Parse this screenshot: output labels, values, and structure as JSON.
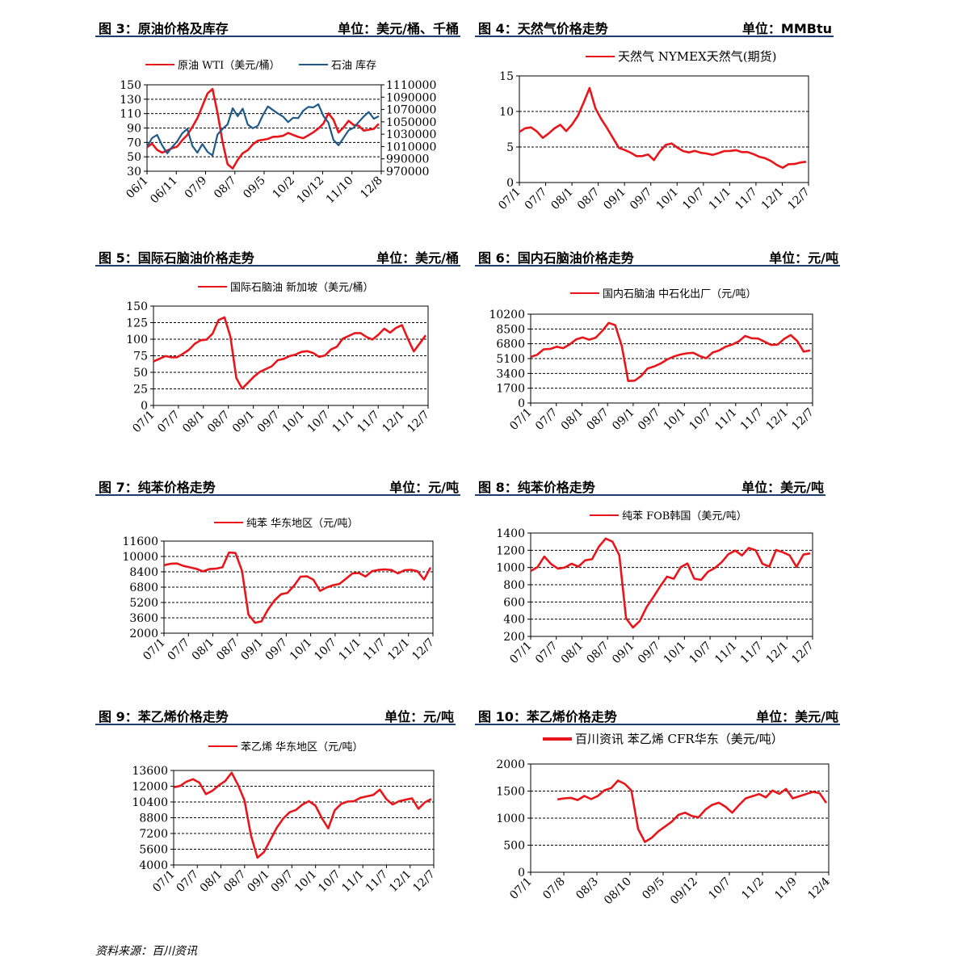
{
  "source": "资料来源：百川资讯",
  "colors": {
    "red": "#e8161b",
    "blue": "#1f5a8a",
    "header_rule": "#1f3c6e"
  },
  "figures": [
    {
      "title": "图 3：原油价格及库存",
      "unit": "单位：美元/桶、千桶"
    },
    {
      "title": "图 4：天然气价格走势",
      "unit": "单位：MMBtu"
    },
    {
      "title": "图 5：国际石脑油价格走势",
      "unit": "单位：美元/桶"
    },
    {
      "title": "图 6：国内石脑油价格走势",
      "unit": "单位：元/吨"
    },
    {
      "title": "图 7：纯苯价格走势",
      "unit": "单位：元/吨"
    },
    {
      "title": "图 8：纯苯价格走势",
      "unit": "单位：美元/吨"
    },
    {
      "title": "图 9：苯乙烯价格走势",
      "unit": "单位：元/吨"
    },
    {
      "title": "图 10：苯乙烯价格走势",
      "unit": "单位：美元/吨"
    }
  ],
  "chart_data": [
    {
      "type": "line",
      "dual_axis": true,
      "x_ticks": [
        "06/1",
        "06/11",
        "07/9",
        "08/7",
        "09/5",
        "10/2",
        "10/12",
        "11/10",
        "12/8"
      ],
      "y_ticks": [
        150,
        130,
        110,
        90,
        70,
        50,
        30
      ],
      "y_range": [
        30,
        150
      ],
      "y2_ticks": [
        1110000,
        1090000,
        1070000,
        1050000,
        1030000,
        1010000,
        990000,
        970000
      ],
      "y2_range": [
        970000,
        1110000
      ],
      "grid": "dashed",
      "legend_position": "top",
      "series": [
        {
          "name": "原油 WTI（美元/桶）",
          "axis": "left",
          "color": "#e8161b",
          "values": [
            62,
            68,
            60,
            57,
            58,
            62,
            65,
            72,
            80,
            92,
            105,
            120,
            138,
            145,
            110,
            70,
            40,
            35,
            45,
            55,
            60,
            66,
            72,
            74,
            76,
            77,
            78,
            80,
            82,
            80,
            78,
            77,
            79,
            84,
            90,
            95,
            110,
            102,
            85,
            90,
            100,
            95,
            92,
            86,
            88,
            90,
            95
          ]
        },
        {
          "name": "石油 库存",
          "axis": "right",
          "color": "#1f5a8a",
          "values": [
            1010000,
            1025000,
            1028000,
            1012000,
            1000000,
            1008000,
            1018000,
            1032000,
            1040000,
            1010000,
            1000000,
            1015000,
            1000000,
            995000,
            1030000,
            1040000,
            1045000,
            1072000,
            1060000,
            1070000,
            1045000,
            1040000,
            1045000,
            1060000,
            1075000,
            1070000,
            1062000,
            1058000,
            1050000,
            1058000,
            1055000,
            1068000,
            1075000,
            1072000,
            1078000,
            1060000,
            1050000,
            1020000,
            1012000,
            1025000,
            1035000,
            1040000,
            1050000,
            1060000,
            1065000,
            1055000,
            1060000
          ]
        }
      ]
    },
    {
      "type": "line",
      "x_ticks": [
        "07/1",
        "07/7",
        "08/1",
        "08/7",
        "09/1",
        "09/7",
        "10/1",
        "10/7",
        "11/1",
        "11/7",
        "12/1",
        "12/7"
      ],
      "y_ticks": [
        15,
        10,
        5,
        0
      ],
      "y_range": [
        0,
        15
      ],
      "grid": "dashed",
      "legend_position": "top",
      "series": [
        {
          "name": "天然气 NYMEX天然气(期货)",
          "color": "#e8161b",
          "values": [
            7.0,
            7.6,
            7.8,
            7.3,
            6.2,
            6.9,
            7.7,
            8.0,
            7.2,
            8.2,
            9.5,
            11.2,
            13.3,
            10.5,
            8.8,
            7.6,
            6.3,
            5.0,
            4.5,
            4.2,
            3.8,
            3.6,
            3.9,
            3.2,
            4.5,
            5.2,
            5.5,
            5.0,
            4.3,
            4.2,
            4.5,
            4.3,
            4.0,
            3.9,
            4.2,
            4.3,
            4.4,
            4.6,
            4.4,
            4.2,
            4.0,
            3.7,
            3.3,
            3.0,
            2.5,
            2.2,
            2.5,
            2.6,
            2.9,
            2.8
          ]
        }
      ]
    },
    {
      "type": "line",
      "x_ticks": [
        "07/1",
        "07/7",
        "08/1",
        "08/7",
        "09/1",
        "09/7",
        "10/1",
        "10/7",
        "11/1",
        "11/7",
        "12/1",
        "12/7"
      ],
      "y_ticks": [
        150,
        125,
        100,
        75,
        50,
        25,
        0
      ],
      "y_range": [
        0,
        150
      ],
      "grid": "dashed",
      "legend_position": "top",
      "series": [
        {
          "name": "国际石脑油 新加坡（美元/桶）",
          "color": "#e8161b",
          "values": [
            65,
            70,
            75,
            74,
            72,
            78,
            85,
            92,
            98,
            100,
            110,
            128,
            133,
            105,
            40,
            25,
            35,
            45,
            50,
            55,
            60,
            67,
            70,
            75,
            78,
            80,
            82,
            80,
            72,
            75,
            85,
            90,
            100,
            105,
            110,
            108,
            103,
            100,
            108,
            115,
            110,
            118,
            120,
            100,
            82,
            95,
            105
          ]
        }
      ]
    },
    {
      "type": "line",
      "x_ticks": [
        "07/1",
        "07/7",
        "08/1",
        "08/7",
        "09/1",
        "09/7",
        "10/1",
        "10/7",
        "11/1",
        "11/7",
        "12/1",
        "12/7"
      ],
      "y_ticks": [
        10200,
        8500,
        6800,
        5100,
        3400,
        1700,
        0
      ],
      "y_range": [
        0,
        10200
      ],
      "grid": "dashed",
      "legend_position": "top",
      "series": [
        {
          "name": "国内石脑油 中石化出厂（元/吨）",
          "color": "#e8161b",
          "values": [
            5200,
            5500,
            6200,
            6300,
            6400,
            6300,
            6800,
            7200,
            7500,
            7300,
            7600,
            8200,
            9200,
            9000,
            6500,
            2500,
            2600,
            3200,
            3900,
            4200,
            4600,
            4900,
            5300,
            5600,
            5800,
            5700,
            5400,
            5200,
            5700,
            6000,
            6500,
            6800,
            7000,
            7700,
            7500,
            7300,
            7000,
            6700,
            6800,
            7300,
            7800,
            7200,
            5800,
            6000
          ]
        }
      ]
    },
    {
      "type": "line",
      "x_ticks": [
        "07/1",
        "07/7",
        "08/1",
        "08/7",
        "09/1",
        "09/7",
        "10/1",
        "10/7",
        "11/1",
        "11/7",
        "12/1",
        "12/7"
      ],
      "y_ticks": [
        11600,
        10000,
        8400,
        6800,
        5200,
        3600,
        2000
      ],
      "y_range": [
        2000,
        11600
      ],
      "grid": "dashed",
      "legend_position": "top",
      "series": [
        {
          "name": "纯苯 华东地区（元/吨）",
          "color": "#e8161b",
          "values": [
            9000,
            9200,
            9300,
            9100,
            8800,
            8700,
            8500,
            8600,
            8700,
            8900,
            10500,
            10300,
            8500,
            4000,
            3000,
            3200,
            4500,
            5500,
            6000,
            6200,
            7000,
            7800,
            7900,
            7600,
            6500,
            6700,
            7000,
            7200,
            7600,
            8200,
            8300,
            8000,
            8400,
            8600,
            8700,
            8500,
            8200,
            8600,
            8700,
            8400,
            7600,
            8900
          ]
        }
      ]
    },
    {
      "type": "line",
      "x_ticks": [
        "07/1",
        "07/7",
        "08/1",
        "08/7",
        "09/1",
        "09/7",
        "10/1",
        "10/7",
        "11/1",
        "11/7",
        "12/1",
        "12/7"
      ],
      "y_ticks": [
        1400,
        1200,
        1000,
        800,
        600,
        400,
        200
      ],
      "y_range": [
        200,
        1400
      ],
      "grid": "dashed",
      "legend_position": "top",
      "series": [
        {
          "name": "纯苯 FOB韩国（美元/吨）",
          "color": "#e8161b",
          "values": [
            950,
            1000,
            1130,
            1050,
            980,
            1000,
            1050,
            1000,
            1080,
            1100,
            1250,
            1330,
            1300,
            1150,
            400,
            300,
            380,
            550,
            650,
            780,
            900,
            860,
            1000,
            1050,
            880,
            850,
            950,
            1000,
            1050,
            1150,
            1200,
            1150,
            1220,
            1200,
            1050,
            1000,
            1200,
            1180,
            1150,
            1000,
            1150,
            1170
          ]
        }
      ]
    },
    {
      "type": "line",
      "x_ticks": [
        "07/1",
        "07/7",
        "08/1",
        "08/7",
        "09/1",
        "09/7",
        "10/1",
        "10/7",
        "11/1",
        "11/7",
        "12/1",
        "12/7"
      ],
      "y_ticks": [
        13600,
        12000,
        10400,
        8800,
        7200,
        5600,
        4000
      ],
      "y_range": [
        4000,
        13600
      ],
      "grid": "dashed",
      "legend_position": "top",
      "series": [
        {
          "name": "苯乙烯 华东地区（元/吨）",
          "color": "#e8161b",
          "values": [
            11800,
            12000,
            12500,
            12800,
            12300,
            11200,
            11600,
            12000,
            12500,
            13400,
            12200,
            10500,
            7000,
            4800,
            5200,
            6500,
            7800,
            8800,
            9300,
            9600,
            10200,
            10400,
            10000,
            8800,
            7800,
            9500,
            10200,
            10500,
            10400,
            10800,
            11000,
            11200,
            11600,
            10700,
            10200,
            10400,
            10600,
            10800,
            9800,
            10300,
            10700
          ]
        }
      ]
    },
    {
      "type": "line",
      "x_ticks": [
        "07/1",
        "07/8",
        "08/3",
        "08/10",
        "09/5",
        "09/12",
        "10/7",
        "11/2",
        "11/9",
        "12/4"
      ],
      "y_ticks": [
        2000,
        1500,
        1000,
        500,
        0
      ],
      "y_range": [
        0,
        2000
      ],
      "grid": "dashed",
      "legend_position": "top",
      "series": [
        {
          "name": "百川资讯 苯乙烯 CFR华东（美元/吨）",
          "color": "#e8161b",
          "values": [
            1330,
            1360,
            1380,
            1350,
            1400,
            1350,
            1420,
            1500,
            1550,
            1700,
            1650,
            1500,
            800,
            570,
            620,
            750,
            850,
            950,
            1050,
            1100,
            1050,
            1000,
            1150,
            1250,
            1300,
            1200,
            1100,
            1250,
            1350,
            1400,
            1450,
            1400,
            1500,
            1450,
            1550,
            1350,
            1400,
            1450,
            1500,
            1450,
            1280
          ]
        }
      ]
    }
  ]
}
